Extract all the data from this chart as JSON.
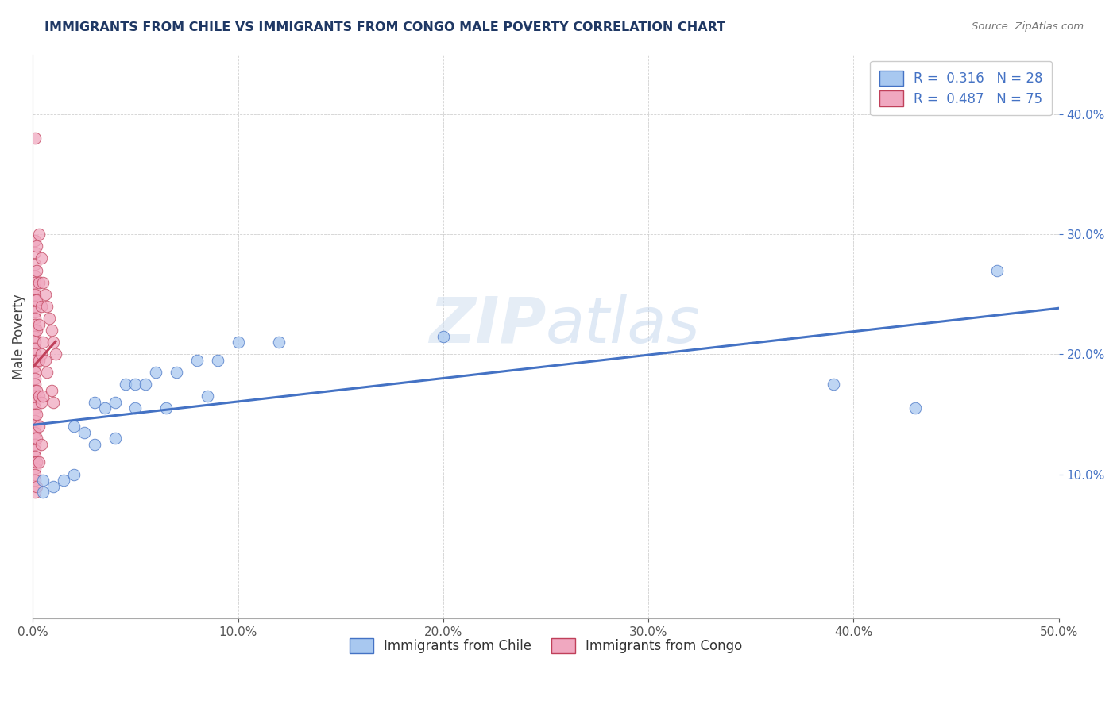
{
  "title": "IMMIGRANTS FROM CHILE VS IMMIGRANTS FROM CONGO MALE POVERTY CORRELATION CHART",
  "source": "Source: ZipAtlas.com",
  "ylabel": "Male Poverty",
  "xlabel": "",
  "xlim": [
    0.0,
    0.5
  ],
  "ylim": [
    -0.02,
    0.45
  ],
  "xtick_vals": [
    0.0,
    0.1,
    0.2,
    0.3,
    0.4,
    0.5
  ],
  "ytick_vals": [
    0.1,
    0.2,
    0.3,
    0.4
  ],
  "watermark": "ZIPatlas",
  "legend_R_chile": "R =  0.316",
  "legend_N_chile": "N = 28",
  "legend_R_congo": "R =  0.487",
  "legend_N_congo": "N = 75",
  "chile_color": "#a8c8f0",
  "congo_color": "#f0a8c0",
  "chile_line_color": "#4472c4",
  "congo_line_color": "#c0405a",
  "title_color": "#1f3864",
  "legend_color": "#4472c4",
  "chile_scatter_x": [
    0.005,
    0.005,
    0.01,
    0.015,
    0.02,
    0.02,
    0.025,
    0.03,
    0.03,
    0.035,
    0.04,
    0.04,
    0.045,
    0.05,
    0.05,
    0.055,
    0.06,
    0.065,
    0.07,
    0.08,
    0.085,
    0.09,
    0.1,
    0.12,
    0.2,
    0.39,
    0.43,
    0.47
  ],
  "chile_scatter_y": [
    0.095,
    0.085,
    0.09,
    0.095,
    0.14,
    0.1,
    0.135,
    0.16,
    0.125,
    0.155,
    0.16,
    0.13,
    0.175,
    0.155,
    0.175,
    0.175,
    0.185,
    0.155,
    0.185,
    0.195,
    0.165,
    0.195,
    0.21,
    0.21,
    0.215,
    0.175,
    0.155,
    0.27
  ],
  "congo_scatter_x": [
    0.001,
    0.001,
    0.001,
    0.001,
    0.001,
    0.001,
    0.001,
    0.001,
    0.001,
    0.001,
    0.001,
    0.001,
    0.001,
    0.001,
    0.001,
    0.001,
    0.001,
    0.001,
    0.001,
    0.001,
    0.001,
    0.001,
    0.001,
    0.001,
    0.001,
    0.001,
    0.001,
    0.001,
    0.001,
    0.001,
    0.001,
    0.001,
    0.001,
    0.001,
    0.001,
    0.001,
    0.001,
    0.001,
    0.001,
    0.001,
    0.002,
    0.002,
    0.002,
    0.002,
    0.002,
    0.002,
    0.002,
    0.002,
    0.002,
    0.002,
    0.003,
    0.003,
    0.003,
    0.003,
    0.003,
    0.003,
    0.003,
    0.004,
    0.004,
    0.004,
    0.004,
    0.004,
    0.005,
    0.005,
    0.005,
    0.006,
    0.006,
    0.007,
    0.007,
    0.008,
    0.009,
    0.009,
    0.01,
    0.01,
    0.011
  ],
  "congo_scatter_y": [
    0.38,
    0.295,
    0.285,
    0.275,
    0.265,
    0.26,
    0.255,
    0.25,
    0.245,
    0.24,
    0.235,
    0.23,
    0.225,
    0.22,
    0.215,
    0.21,
    0.205,
    0.2,
    0.195,
    0.19,
    0.185,
    0.18,
    0.175,
    0.17,
    0.165,
    0.16,
    0.155,
    0.15,
    0.145,
    0.14,
    0.135,
    0.13,
    0.125,
    0.12,
    0.115,
    0.11,
    0.105,
    0.1,
    0.095,
    0.085,
    0.29,
    0.27,
    0.245,
    0.22,
    0.195,
    0.17,
    0.15,
    0.13,
    0.11,
    0.09,
    0.3,
    0.26,
    0.225,
    0.195,
    0.165,
    0.14,
    0.11,
    0.28,
    0.24,
    0.2,
    0.16,
    0.125,
    0.26,
    0.21,
    0.165,
    0.25,
    0.195,
    0.24,
    0.185,
    0.23,
    0.22,
    0.17,
    0.21,
    0.16,
    0.2
  ]
}
